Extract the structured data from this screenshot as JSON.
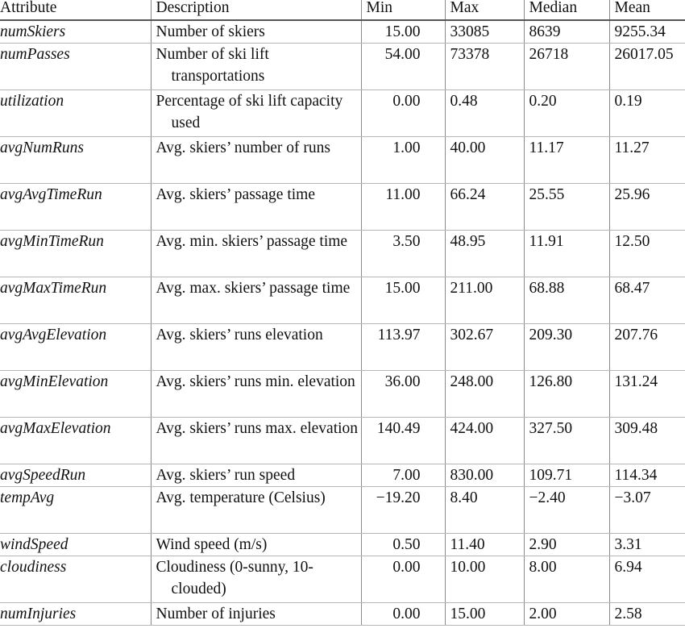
{
  "table": {
    "headers": [
      "Attribute",
      "Description",
      "Min",
      "Max",
      "Median",
      "Mean"
    ],
    "rows": [
      {
        "attribute": "numSkiers",
        "description": "Number of skiers",
        "min": "15.00",
        "max": "33085",
        "median": "8639",
        "mean": "9255.34"
      },
      {
        "attribute": "numPasses",
        "description": "Number of ski lift transportations",
        "min": "54.00",
        "max": "73378",
        "median": "26718",
        "mean": "26017.05"
      },
      {
        "attribute": "utilization",
        "description": "Percentage of ski lift capacity used",
        "min": "0.00",
        "max": "0.48",
        "median": "0.20",
        "mean": "0.19"
      },
      {
        "attribute": "avgNumRuns",
        "description": "Avg. skiers’ number of runs",
        "min": "1.00",
        "max": "40.00",
        "median": "11.17",
        "mean": "11.27"
      },
      {
        "attribute": "avgAvgTimeRun",
        "description": "Avg. skiers’ passage time",
        "min": "11.00",
        "max": "66.24",
        "median": "25.55",
        "mean": "25.96"
      },
      {
        "attribute": "avgMinTimeRun",
        "description": "Avg. min. skiers’ passage time",
        "min": "3.50",
        "max": "48.95",
        "median": "11.91",
        "mean": "12.50"
      },
      {
        "attribute": "avgMaxTimeRun",
        "description": "Avg. max. skiers’ passage time",
        "min": "15.00",
        "max": "211.00",
        "median": "68.88",
        "mean": "68.47"
      },
      {
        "attribute": "avgAvgElevation",
        "description": "Avg. skiers’ runs elevation",
        "min": "113.97",
        "max": "302.67",
        "median": "209.30",
        "mean": "207.76"
      },
      {
        "attribute": "avgMinElevation",
        "description": "Avg. skiers’ runs min. elevation",
        "min": "36.00",
        "max": "248.00",
        "median": "126.80",
        "mean": "131.24"
      },
      {
        "attribute": "avgMaxElevation",
        "description": "Avg. skiers’ runs max. elevation",
        "min": "140.49",
        "max": "424.00",
        "median": "327.50",
        "mean": "309.48"
      },
      {
        "attribute": "avgSpeedRun",
        "description": "Avg. skiers’ run speed",
        "min": "7.00",
        "max": "830.00",
        "median": "109.71",
        "mean": "114.34"
      },
      {
        "attribute": "tempAvg",
        "description": "Avg. temperature (Celsius)",
        "min": "−19.20",
        "max": "8.40",
        "median": "−2.40",
        "mean": "−3.07"
      },
      {
        "attribute": "windSpeed",
        "description": "Wind speed (m/s)",
        "min": "0.50",
        "max": "11.40",
        "median": "2.90",
        "mean": "3.31"
      },
      {
        "attribute": "cloudiness",
        "description": "Cloudiness (0-sunny, 10-clouded)",
        "min": "0.00",
        "max": "10.00",
        "median": "8.00",
        "mean": "6.94"
      },
      {
        "attribute": "numInjuries",
        "description": "Number of injuries",
        "min": "0.00",
        "max": "15.00",
        "median": "2.00",
        "mean": "2.58"
      }
    ]
  }
}
